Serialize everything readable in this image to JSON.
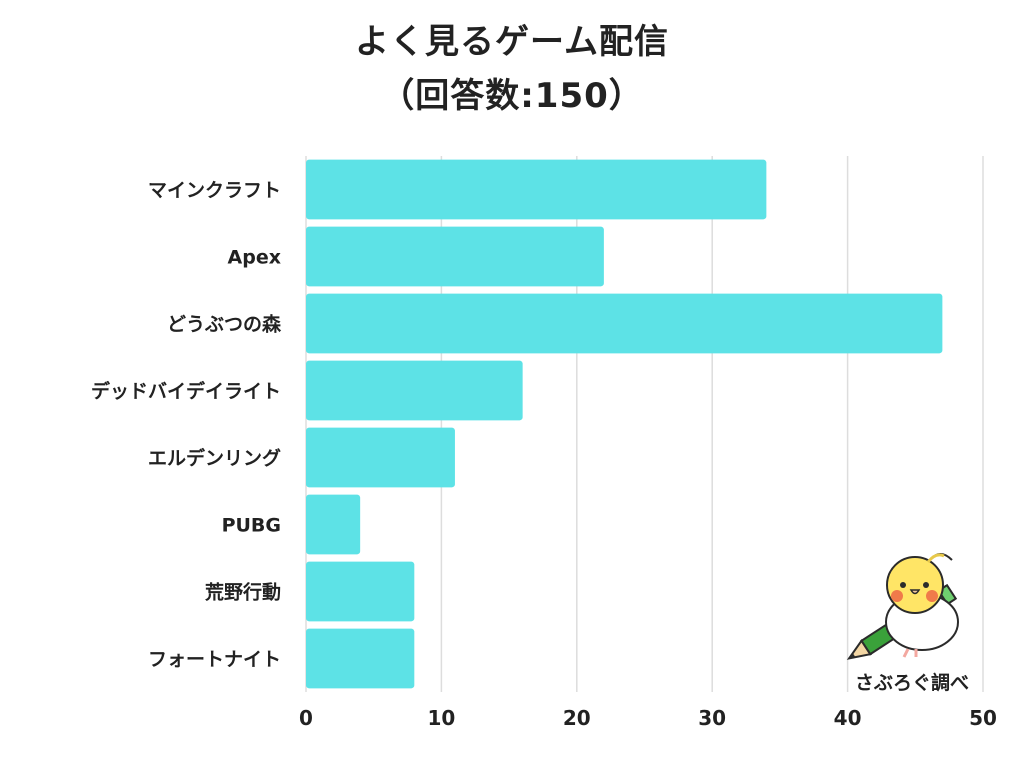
{
  "chart_data": {
    "type": "bar",
    "orientation": "horizontal",
    "title": "よく見るゲーム配信",
    "subtitle": "（回答数:150）",
    "categories": [
      "マインクラフト",
      "Apex",
      "どうぶつの森",
      "デッドバイデイライト",
      "エルデンリング",
      "PUBG",
      "荒野行動",
      "フォートナイト"
    ],
    "values": [
      34,
      22,
      47,
      16,
      11,
      4,
      8,
      8
    ],
    "xlim": [
      0,
      50
    ],
    "xticks": [
      0,
      10,
      20,
      30,
      40,
      50
    ],
    "xlabel": "",
    "ylabel": "",
    "grid": "vertical",
    "legend": "none",
    "bar_color": "#5de2e6",
    "grid_color": "#dddddd"
  },
  "credit": {
    "text": "さぶろぐ調べ",
    "mascot_icon": "cockatiel-with-pencil-icon"
  }
}
